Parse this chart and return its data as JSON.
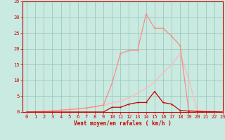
{
  "x": [
    0,
    1,
    2,
    3,
    4,
    5,
    6,
    7,
    8,
    9,
    10,
    11,
    12,
    13,
    14,
    15,
    16,
    17,
    18,
    19,
    20,
    21,
    22,
    23
  ],
  "line_pink_light_y": [
    0,
    0.1,
    0.2,
    0.4,
    0.6,
    0.8,
    1.0,
    1.3,
    1.7,
    2.2,
    2.8,
    3.5,
    4.5,
    6.0,
    7.5,
    9.5,
    12.5,
    15.0,
    18.5,
    10.5,
    0.5,
    0.2,
    0.1,
    0
  ],
  "line_pink_mid_y": [
    0,
    0.1,
    0.2,
    0.4,
    0.6,
    0.8,
    1.0,
    1.3,
    1.7,
    2.2,
    9.0,
    18.5,
    19.5,
    19.5,
    31.0,
    26.5,
    26.5,
    24.0,
    21.0,
    0.5,
    0.2,
    0.1,
    0.1,
    0
  ],
  "line_dark_red_y": [
    0,
    0.0,
    0.0,
    0.0,
    0.0,
    0.0,
    0.0,
    0.0,
    0.0,
    0.0,
    1.5,
    1.5,
    2.5,
    3.0,
    3.0,
    6.5,
    3.0,
    2.5,
    0.5,
    0.3,
    0.2,
    0.1,
    0.1,
    0
  ],
  "xlabel": "Vent moyen/en rafales ( km/h )",
  "ylim": [
    0,
    35
  ],
  "xlim": [
    -0.5,
    23
  ],
  "yticks": [
    0,
    5,
    10,
    15,
    20,
    25,
    30,
    35
  ],
  "xticks": [
    0,
    1,
    2,
    3,
    4,
    5,
    6,
    7,
    8,
    9,
    10,
    11,
    12,
    13,
    14,
    15,
    16,
    17,
    18,
    19,
    20,
    21,
    22,
    23
  ],
  "bg_color": "#c8eae0",
  "grid_color": "#a0c8bc",
  "line_pink_light_color": "#ffb8b8",
  "line_pink_mid_color": "#ff8888",
  "line_dark_red_color": "#cc0000",
  "marker_size": 2.5,
  "line_width": 0.9,
  "tick_fontsize": 5.0,
  "xlabel_fontsize": 5.5
}
